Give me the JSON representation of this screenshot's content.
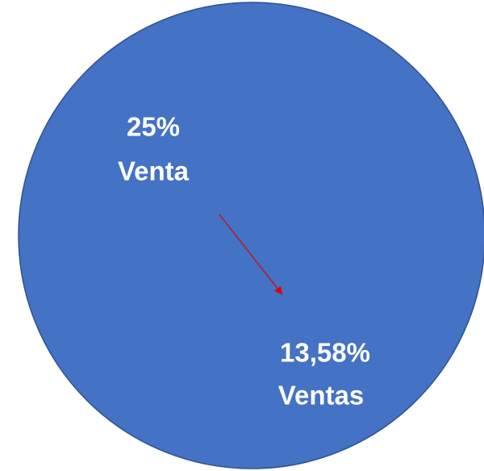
{
  "labels": [
    {
      "lines": [
        "25%",
        "Venta"
      ]
    },
    {
      "lines": [
        "13,58%",
        "Ventas"
      ]
    }
  ]
}
